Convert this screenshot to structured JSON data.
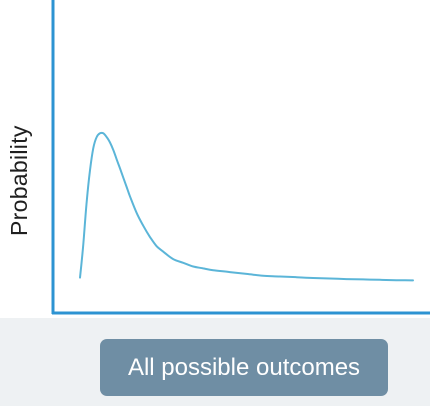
{
  "chart_data": {
    "type": "line",
    "title": "",
    "xlabel": "All possible outcomes",
    "ylabel": "Probability",
    "grid": false,
    "legend": "none",
    "x_ticks": [],
    "y_ticks": [],
    "xlim": [
      0,
      100
    ],
    "ylim": [
      0,
      100
    ],
    "x": [
      0,
      1,
      2,
      3,
      4,
      5,
      6,
      7,
      8,
      9,
      10,
      11,
      12,
      13,
      14,
      15,
      17,
      19,
      21,
      23,
      25,
      28,
      31,
      34,
      37,
      40,
      45,
      50,
      55,
      60,
      65,
      70,
      75,
      80,
      85,
      90,
      95,
      100
    ],
    "y": [
      4,
      22,
      45,
      62,
      74,
      80,
      82,
      82,
      80,
      77,
      73,
      68,
      63,
      58,
      53,
      48,
      39,
      32,
      26,
      21,
      18,
      14,
      12,
      10,
      9,
      8,
      7,
      6,
      5,
      4.6,
      4.2,
      3.8,
      3.5,
      3.2,
      3,
      2.8,
      2.6,
      2.5
    ],
    "colors": {
      "curve": "#5bb5d8",
      "axis": "#2d93d2"
    }
  }
}
